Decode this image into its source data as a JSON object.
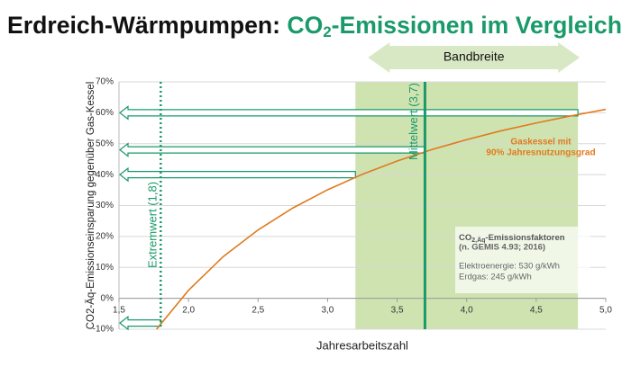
{
  "chart_data": {
    "type": "line",
    "title_parts": [
      "Erdreich-Wärmpumpen: ",
      "CO",
      "2",
      "-Emissionen im Vergleich"
    ],
    "x_label": "Jahresarbeitszahl",
    "y_label": "CO2-Äq-Emissionseinsparung gegenüber Gas-Kessel",
    "xlim": [
      1.5,
      5.0
    ],
    "ylim": [
      -10,
      70
    ],
    "xticks": [
      {
        "value": 1.5,
        "label": "1,5"
      },
      {
        "value": 2.0,
        "label": "2,0"
      },
      {
        "value": 2.5,
        "label": "2,5"
      },
      {
        "value": 3.0,
        "label": "3,0"
      },
      {
        "value": 3.5,
        "label": "3,5"
      },
      {
        "value": 4.0,
        "label": "4,0"
      },
      {
        "value": 4.5,
        "label": "4,5"
      },
      {
        "value": 5.0,
        "label": "5,0"
      }
    ],
    "yticks": [
      {
        "value": -10,
        "label": "-10%"
      },
      {
        "value": 0,
        "label": "0%"
      },
      {
        "value": 10,
        "label": "10%"
      },
      {
        "value": 20,
        "label": "20%"
      },
      {
        "value": 30,
        "label": "30%"
      },
      {
        "value": 40,
        "label": "40%"
      },
      {
        "value": 50,
        "label": "50%"
      },
      {
        "value": 60,
        "label": "60%"
      },
      {
        "value": 70,
        "label": "70%"
      }
    ],
    "grid": true,
    "series": [
      {
        "name": "Gaskessel mit 90% Jahresnutzungsgrad",
        "color": "#e07a1f",
        "x": [
          1.77,
          2.0,
          2.25,
          2.5,
          2.75,
          3.0,
          3.25,
          3.5,
          3.75,
          4.0,
          4.25,
          4.5,
          4.75,
          5.0
        ],
        "values": [
          -10.0,
          2.6,
          13.5,
          22.1,
          29.2,
          35.1,
          40.1,
          44.4,
          48.1,
          51.3,
          54.2,
          56.7,
          59.0,
          61.1
        ]
      }
    ],
    "band": {
      "label": "Bandbreite",
      "range": [
        3.2,
        4.8
      ],
      "color": "#cfe3b0"
    },
    "mean": {
      "label": "Mittelwert (3,7)",
      "value": 3.7,
      "color": "#1a9a6a"
    },
    "extreme": {
      "label": "Extremwert (1,8)",
      "value": 1.8,
      "color": "#1a9a6a"
    },
    "arrows": [
      {
        "x": 4.8,
        "y": 60
      },
      {
        "x": 3.7,
        "y": 48
      },
      {
        "x": 3.2,
        "y": 40
      },
      {
        "x": 1.8,
        "y": -8
      }
    ],
    "series_label_lines": [
      "Gaskessel mit",
      "90% Jahresnutzungsgrad"
    ],
    "info_box": {
      "heading": "CO",
      "heading_sub": "2,Äq",
      "heading_rest": "-Emissionsfaktoren",
      "lines": [
        "(n. GEMIS 4.93; 2016)",
        "Elektroenergie: 530 g/kWh",
        "Erdgas: 245 g/kWh"
      ]
    }
  }
}
